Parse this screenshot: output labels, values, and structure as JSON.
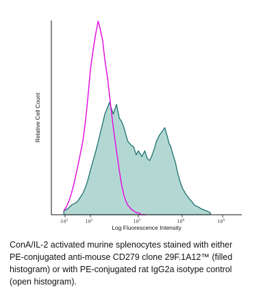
{
  "chart_data": {
    "type": "area",
    "xlabel": "Log Fluorescence Intensity",
    "ylabel": "Relative Cell Count",
    "x_scale": "log",
    "xlim": [
      -200,
      100000
    ],
    "ylim": [
      0,
      100
    ],
    "x_ticks": [
      {
        "value": -100,
        "label": "-10",
        "exp": "2"
      },
      {
        "value": 100,
        "label": "10",
        "exp": "2"
      },
      {
        "value": 1000,
        "label": "10",
        "exp": "3"
      },
      {
        "value": 10000,
        "label": "10",
        "exp": "4"
      },
      {
        "value": 100000,
        "label": "10",
        "exp": "5"
      }
    ],
    "grid": false,
    "series": [
      {
        "role": "PE-conjugated anti-mouse CD279 clone 29F.1A12 (filled histogram)",
        "style": "filled",
        "line_color": "#1c6e6e",
        "fill_color": "#b3d8d3",
        "x": [
          -110,
          -80,
          -50,
          -20,
          0,
          20,
          40,
          60,
          80,
          100,
          130,
          160,
          200,
          250,
          300,
          350,
          400,
          450,
          500,
          600,
          700,
          800,
          900,
          1000,
          1200,
          1400,
          1600,
          1800,
          2000,
          2300,
          2600,
          3000,
          3500,
          4000,
          4500,
          5000,
          5500,
          6000,
          7000,
          8000,
          9000,
          10000,
          12000,
          14000,
          17000,
          20000,
          25000,
          30000,
          40000,
          50000
        ],
        "y": [
          2,
          3,
          5,
          6,
          7,
          9,
          11,
          14,
          18,
          23,
          33,
          42,
          52,
          58,
          52,
          57,
          50,
          48,
          45,
          38,
          36,
          35,
          31,
          33,
          30,
          33,
          29,
          28,
          30,
          34,
          38,
          41,
          43,
          45,
          41,
          37,
          35,
          32,
          27,
          21,
          17,
          14,
          11,
          9,
          7,
          5,
          4,
          3,
          2,
          1
        ]
      },
      {
        "role": "PE-conjugated rat IgG2a isotype control (open histogram)",
        "style": "open",
        "line_color": "#e012e0",
        "x": [
          -110,
          -90,
          -70,
          -50,
          -30,
          -10,
          10,
          25,
          40,
          55,
          70,
          85,
          100,
          115,
          130,
          145,
          160,
          180,
          200,
          230,
          260,
          300,
          350,
          400,
          450,
          500,
          550,
          600,
          700,
          800,
          900,
          1000,
          1200,
          1500
        ],
        "y": [
          2,
          4,
          7,
          11,
          16,
          22,
          28,
          33,
          38,
          45,
          54,
          64,
          75,
          86,
          94,
          100,
          96,
          90,
          80,
          70,
          58,
          45,
          33,
          23,
          15,
          10,
          7,
          5,
          3,
          2,
          1,
          1,
          0,
          0
        ]
      }
    ]
  },
  "caption": {
    "lines": [
      "ConA/IL-2 activated murine splenocytes stained with either",
      "PE-conjugated anti-mouse CD279 clone 29F.1A12™ (filled",
      "histogram) or with PE-conjugated rat IgG2a isotype control",
      "(open histogram)."
    ]
  }
}
